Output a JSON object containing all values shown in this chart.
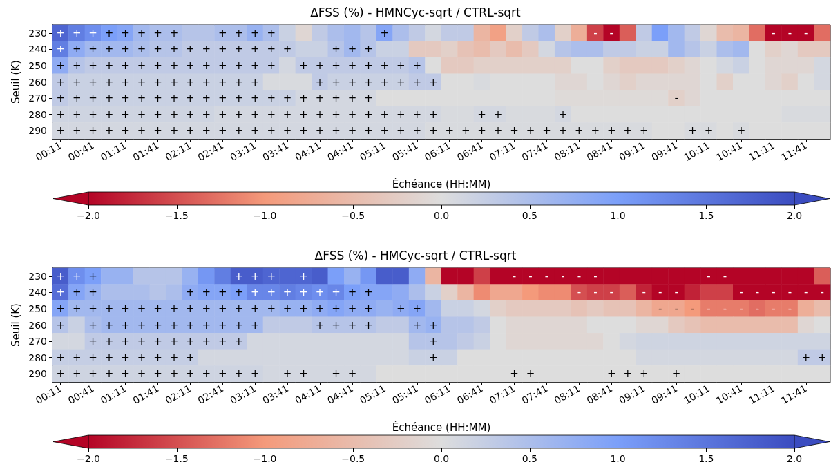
{
  "chart_data": [
    {
      "type": "heatmap",
      "title": "ΔFSS (%) - HMNCyc-sqrt / CTRL-sqrt",
      "xlabel": "Échéance (HH:MM)",
      "ylabel": "Seuil (K)",
      "categories": [
        "00:11",
        null,
        "00:41",
        null,
        "01:11",
        null,
        "01:41",
        null,
        "02:11",
        null,
        "02:41",
        null,
        "03:11",
        null,
        "03:41",
        null,
        "04:11",
        null,
        "04:41",
        null,
        "05:11",
        null,
        "05:41",
        null,
        "06:11",
        null,
        "06:41",
        null,
        "07:11",
        null,
        "07:41",
        null,
        "08:11",
        null,
        "08:41",
        null,
        "09:11",
        null,
        "09:41",
        null,
        "10:11",
        null,
        "10:41",
        null,
        "11:11",
        null,
        "11:41",
        null
      ],
      "y_categories": [
        "230",
        "240",
        "250",
        "260",
        "270",
        "280",
        "290"
      ],
      "cells": [
        [
          1.7,
          1.4,
          1.2,
          1.0,
          0.9,
          0.6,
          0.5,
          0.5,
          0.4,
          0.4,
          0.5,
          0.5,
          0.7,
          0.5,
          0.2,
          -0.1,
          0.3,
          0.5,
          0.6,
          0.4,
          0.9,
          0.5,
          0.3,
          0.1,
          0.3,
          0.3,
          -0.6,
          -0.9,
          -0.2,
          0.3,
          0.5,
          -0.2,
          -0.7,
          -1.6,
          -2.0,
          -1.4,
          0.3,
          1.0,
          0.6,
          0.3,
          -0.1,
          -0.5,
          -0.6,
          -1.3,
          -2.0,
          -2.0,
          -2.0,
          -1.3
        ],
        [
          1.4,
          0.8,
          0.6,
          0.6,
          0.6,
          0.5,
          0.4,
          0.4,
          0.3,
          0.3,
          0.3,
          0.3,
          0.3,
          0.3,
          0.3,
          0.2,
          0.2,
          0.4,
          0.6,
          0.4,
          0.2,
          0.2,
          -0.3,
          -0.3,
          -0.2,
          -0.4,
          -0.5,
          -0.3,
          -0.5,
          -0.3,
          0.1,
          0.4,
          0.5,
          0.5,
          0.3,
          0.3,
          0.2,
          0.2,
          0.6,
          0.4,
          0.2,
          0.5,
          0.6,
          0.0,
          -0.2,
          -0.1,
          -0.3,
          -0.3
        ],
        [
          0.8,
          0.4,
          0.3,
          0.3,
          0.3,
          0.3,
          0.3,
          0.3,
          0.3,
          0.3,
          0.3,
          0.3,
          0.3,
          0.3,
          0.1,
          0.3,
          0.3,
          0.3,
          0.3,
          0.3,
          0.3,
          0.3,
          0.4,
          0.0,
          -0.3,
          -0.3,
          -0.2,
          -0.2,
          -0.2,
          -0.2,
          -0.2,
          -0.2,
          0.0,
          0.0,
          -0.2,
          -0.3,
          -0.3,
          -0.3,
          -0.2,
          -0.1,
          0.0,
          0.1,
          0.2,
          0.0,
          -0.1,
          -0.1,
          -0.1,
          0.1
        ],
        [
          0.3,
          0.2,
          0.2,
          0.2,
          0.2,
          0.2,
          0.2,
          0.2,
          0.2,
          0.2,
          0.2,
          0.2,
          0.2,
          0.05,
          0.05,
          0.05,
          0.3,
          0.2,
          0.2,
          0.2,
          0.2,
          0.2,
          0.3,
          0.3,
          0.0,
          0.0,
          0.05,
          0.0,
          0.0,
          0.0,
          0.0,
          -0.1,
          -0.1,
          0.0,
          -0.1,
          -0.2,
          -0.1,
          -0.1,
          -0.1,
          -0.1,
          0.0,
          -0.2,
          0.0,
          0.0,
          -0.1,
          -0.2,
          0.0,
          0.1
        ],
        [
          0.3,
          0.2,
          0.2,
          0.2,
          0.2,
          0.2,
          0.2,
          0.2,
          0.2,
          0.2,
          0.2,
          0.2,
          0.2,
          0.2,
          0.2,
          0.1,
          0.1,
          0.1,
          0.1,
          0.1,
          0.0,
          0.0,
          0.0,
          0.0,
          0.0,
          0.0,
          0.0,
          0.0,
          0.0,
          0.0,
          0.0,
          -0.05,
          -0.05,
          -0.05,
          -0.05,
          -0.05,
          -0.05,
          -0.05,
          -0.2,
          -0.1,
          0.0,
          0.0,
          0.0,
          0.0,
          0.0,
          0.0,
          0.0,
          0.0
        ],
        [
          0.15,
          0.15,
          0.15,
          0.15,
          0.15,
          0.15,
          0.15,
          0.15,
          0.15,
          0.15,
          0.1,
          0.1,
          0.1,
          0.1,
          0.1,
          0.1,
          0.1,
          0.1,
          0.1,
          0.1,
          0.1,
          0.1,
          0.1,
          0.1,
          0.05,
          0.05,
          0.1,
          0.1,
          0.05,
          0.05,
          0.05,
          0.1,
          0.0,
          0.0,
          0.0,
          0.0,
          0.0,
          0.0,
          0.0,
          0.0,
          0.0,
          0.0,
          0.0,
          0.0,
          0.0,
          0.05,
          0.05,
          0.05
        ],
        [
          0.1,
          0.1,
          0.1,
          0.1,
          0.1,
          0.1,
          0.1,
          0.1,
          0.1,
          0.1,
          0.1,
          0.1,
          0.1,
          0.1,
          0.1,
          0.1,
          0.1,
          0.1,
          0.1,
          0.1,
          0.1,
          0.1,
          0.1,
          0.05,
          0.05,
          0.05,
          0.05,
          0.05,
          0.05,
          0.05,
          0.05,
          0.05,
          0.05,
          0.05,
          0.05,
          0.05,
          0.05,
          0.0,
          0.0,
          0.05,
          0.05,
          0.0,
          0.05,
          0.0,
          0.0,
          0.0,
          0.0,
          0.0
        ]
      ],
      "cell_labels": [
        [
          "+",
          "+",
          "+",
          "+",
          "+",
          "+",
          "+",
          "+",
          null,
          null,
          "+",
          "+",
          "+",
          "+",
          null,
          null,
          null,
          null,
          null,
          null,
          "+",
          null,
          null,
          null,
          null,
          null,
          null,
          null,
          null,
          null,
          null,
          null,
          null,
          "-",
          "-",
          null,
          null,
          null,
          null,
          null,
          null,
          null,
          null,
          null,
          "-",
          "-",
          "-",
          null
        ],
        [
          "+",
          "+",
          "+",
          "+",
          "+",
          "+",
          "+",
          "+",
          "+",
          "+",
          "+",
          "+",
          "+",
          "+",
          "+",
          null,
          null,
          "+",
          "+",
          "+",
          null,
          null,
          null,
          null,
          null,
          null,
          null,
          null,
          null,
          null,
          null,
          null,
          null,
          null,
          null,
          null,
          null,
          null,
          null,
          null,
          null,
          null,
          null,
          null,
          null,
          null,
          null,
          null
        ],
        [
          "+",
          "+",
          "+",
          "+",
          "+",
          "+",
          "+",
          "+",
          "+",
          "+",
          "+",
          "+",
          "+",
          "+",
          null,
          "+",
          "+",
          "+",
          "+",
          "+",
          "+",
          "+",
          "+",
          null,
          null,
          null,
          null,
          null,
          null,
          null,
          null,
          null,
          null,
          null,
          null,
          null,
          null,
          null,
          null,
          null,
          null,
          null,
          null,
          null,
          null,
          null,
          null,
          null
        ],
        [
          "+",
          "+",
          "+",
          "+",
          "+",
          "+",
          "+",
          "+",
          "+",
          "+",
          "+",
          "+",
          "+",
          null,
          null,
          null,
          "+",
          "+",
          "+",
          "+",
          "+",
          "+",
          "+",
          "+",
          null,
          null,
          null,
          null,
          null,
          null,
          null,
          null,
          null,
          null,
          null,
          null,
          null,
          null,
          null,
          null,
          null,
          null,
          null,
          null,
          null,
          null,
          null,
          null
        ],
        [
          "+",
          "+",
          "+",
          "+",
          "+",
          "+",
          "+",
          "+",
          "+",
          "+",
          "+",
          "+",
          "+",
          "+",
          "+",
          "+",
          "+",
          "+",
          "+",
          "+",
          null,
          null,
          null,
          null,
          null,
          null,
          null,
          null,
          null,
          null,
          null,
          null,
          null,
          null,
          null,
          null,
          null,
          null,
          "-",
          null,
          null,
          null,
          null,
          null,
          null,
          null,
          null,
          null
        ],
        [
          "+",
          "+",
          "+",
          "+",
          "+",
          "+",
          "+",
          "+",
          "+",
          "+",
          "+",
          "+",
          "+",
          "+",
          "+",
          "+",
          "+",
          "+",
          "+",
          "+",
          "+",
          "+",
          "+",
          "+",
          null,
          null,
          "+",
          "+",
          null,
          null,
          null,
          "+",
          null,
          null,
          null,
          null,
          null,
          null,
          null,
          null,
          null,
          null,
          null,
          null,
          null,
          null,
          null,
          null
        ],
        [
          "+",
          "+",
          "+",
          "+",
          "+",
          "+",
          "+",
          "+",
          "+",
          "+",
          "+",
          "+",
          "+",
          "+",
          "+",
          "+",
          "+",
          "+",
          "+",
          "+",
          "+",
          "+",
          "+",
          "+",
          "+",
          "+",
          "+",
          "+",
          "+",
          "+",
          "+",
          "+",
          "+",
          "+",
          "+",
          "+",
          "+",
          null,
          null,
          "+",
          "+",
          null,
          "+",
          null,
          null,
          null,
          null,
          null
        ]
      ],
      "clim": [
        -2,
        2
      ],
      "cticks": [
        {
          "value": -2,
          "label": "−2.0"
        },
        {
          "value": -1.5,
          "label": "−1.5"
        },
        {
          "value": -1,
          "label": "−1.0"
        },
        {
          "value": -0.5,
          "label": "−0.5"
        },
        {
          "value": 0,
          "label": "0.0"
        },
        {
          "value": 0.5,
          "label": "0.5"
        },
        {
          "value": 1,
          "label": "1.0"
        },
        {
          "value": 1.5,
          "label": "1.5"
        },
        {
          "value": 2,
          "label": "2.0"
        }
      ]
    },
    {
      "type": "heatmap",
      "title": "ΔFSS (%) - HMCyc-sqrt / CTRL-sqrt",
      "xlabel": "Échéance (HH:MM)",
      "ylabel": "Seuil (K)",
      "categories": [
        "00:11",
        null,
        "00:41",
        null,
        "01:11",
        null,
        "01:41",
        null,
        "02:11",
        null,
        "02:41",
        null,
        "03:11",
        null,
        "03:41",
        null,
        "04:11",
        null,
        "04:41",
        null,
        "05:11",
        null,
        "05:41",
        null,
        "06:11",
        null,
        "06:41",
        null,
        "07:11",
        null,
        "07:41",
        null,
        "08:11",
        null,
        "08:41",
        null,
        "09:11",
        null,
        "09:41",
        null,
        "10:11",
        null,
        "10:41",
        null,
        "11:11",
        null,
        "11:41",
        null
      ],
      "y_categories": [
        "230",
        "240",
        "250",
        "260",
        "270",
        "280",
        "290"
      ],
      "cells": [
        [
          1.8,
          1.2,
          1.0,
          0.7,
          0.7,
          0.4,
          0.4,
          0.4,
          0.7,
          1.1,
          1.4,
          1.8,
          1.8,
          1.7,
          1.7,
          1.7,
          1.8,
          1.0,
          0.7,
          1.1,
          1.8,
          1.8,
          0.8,
          -0.6,
          -2.0,
          -2.0,
          -1.6,
          -2.0,
          -2.0,
          -2.0,
          -2.0,
          -2.0,
          -2.0,
          -2.0,
          -2.0,
          -2.0,
          -2.0,
          -2.0,
          -2.0,
          -2.0,
          -2.0,
          -2.0,
          -2.0,
          -2.0,
          -2.0,
          -2.0,
          -2.0,
          -1.4
        ],
        [
          1.6,
          0.9,
          0.7,
          0.5,
          0.5,
          0.5,
          0.4,
          0.5,
          0.8,
          0.9,
          0.9,
          1.0,
          1.3,
          1.3,
          1.4,
          1.3,
          1.2,
          1.3,
          1.0,
          0.9,
          0.9,
          0.8,
          0.5,
          0.2,
          -0.2,
          -0.6,
          -1.1,
          -0.8,
          -0.8,
          -1.0,
          -1.1,
          -1.1,
          -1.5,
          -1.6,
          -1.6,
          -1.4,
          -1.8,
          -2.0,
          -2.0,
          -1.8,
          -1.6,
          -1.6,
          -2.0,
          -2.0,
          -2.0,
          -2.0,
          -2.0,
          -2.0
        ],
        [
          0.9,
          0.6,
          0.6,
          0.6,
          0.6,
          0.6,
          0.6,
          0.6,
          0.6,
          0.6,
          0.6,
          0.6,
          0.6,
          0.6,
          0.7,
          0.7,
          0.8,
          0.9,
          0.8,
          0.8,
          0.7,
          0.8,
          0.9,
          0.6,
          0.2,
          0.2,
          0.1,
          -0.2,
          -0.3,
          -0.3,
          -0.3,
          -0.3,
          -0.4,
          -0.3,
          -0.4,
          -0.4,
          -0.6,
          -0.8,
          -0.8,
          -1.0,
          -1.2,
          -1.2,
          -1.2,
          -1.3,
          -1.2,
          -1.2,
          -0.7,
          -0.5
        ],
        [
          0.4,
          0.2,
          0.5,
          0.6,
          0.6,
          0.6,
          0.6,
          0.6,
          0.6,
          0.6,
          0.6,
          0.6,
          0.6,
          0.3,
          0.3,
          0.3,
          0.4,
          0.4,
          0.4,
          0.4,
          0.3,
          0.3,
          0.6,
          0.7,
          0.4,
          0.4,
          0.3,
          0.0,
          -0.1,
          -0.1,
          -0.1,
          -0.1,
          -0.1,
          0.0,
          0.0,
          0.0,
          -0.1,
          -0.1,
          -0.3,
          -0.4,
          -0.5,
          -0.5,
          -0.5,
          -0.5,
          -0.5,
          -0.5,
          -0.1,
          0.0
        ],
        [
          0.1,
          0.1,
          0.3,
          0.3,
          0.3,
          0.3,
          0.3,
          0.3,
          0.3,
          0.3,
          0.3,
          0.3,
          0.1,
          0.1,
          0.1,
          0.1,
          0.1,
          0.1,
          0.1,
          0.1,
          0.1,
          0.1,
          0.4,
          0.4,
          0.4,
          0.3,
          0.2,
          0.0,
          -0.1,
          -0.1,
          -0.1,
          -0.1,
          -0.1,
          -0.1,
          0.0,
          0.1,
          0.15,
          0.15,
          0.15,
          0.15,
          0.15,
          0.15,
          0.15,
          0.15,
          0.15,
          0.15,
          0.15,
          0.15
        ],
        [
          0.25,
          0.25,
          0.25,
          0.25,
          0.25,
          0.25,
          0.25,
          0.25,
          0.25,
          0.1,
          0.1,
          0.1,
          0.1,
          0.1,
          0.1,
          0.1,
          0.1,
          0.1,
          0.1,
          0.1,
          0.1,
          0.1,
          0.2,
          0.2,
          0.2,
          0.0,
          0.0,
          0.0,
          0.0,
          0.0,
          0.0,
          0.0,
          0.0,
          0.0,
          0.0,
          0.0,
          0.1,
          0.1,
          0.1,
          0.1,
          0.1,
          0.1,
          0.1,
          0.1,
          0.1,
          0.1,
          0.3,
          0.3
        ],
        [
          0.15,
          0.15,
          0.15,
          0.15,
          0.15,
          0.15,
          0.15,
          0.15,
          0.15,
          0.15,
          0.15,
          0.15,
          0.15,
          0.1,
          0.1,
          0.1,
          0.1,
          0.1,
          0.1,
          0.1,
          0.0,
          0.0,
          0.0,
          0.0,
          0.0,
          0.0,
          0.0,
          0.0,
          0.0,
          0.0,
          0.0,
          0.0,
          0.0,
          0.0,
          0.0,
          0.0,
          0.0,
          0.0,
          0.0,
          0.0,
          0.0,
          0.0,
          0.0,
          0.0,
          0.0,
          0.0,
          0.0,
          0.0
        ]
      ],
      "cell_labels": [
        [
          "+",
          "+",
          "+",
          null,
          null,
          null,
          null,
          null,
          null,
          null,
          null,
          "+",
          "+",
          "+",
          null,
          "+",
          null,
          null,
          null,
          null,
          null,
          null,
          null,
          null,
          null,
          null,
          null,
          null,
          "-",
          "-",
          "-",
          "-",
          "-",
          "-",
          null,
          null,
          null,
          null,
          null,
          null,
          "-",
          "-",
          null,
          null,
          null,
          null,
          null,
          null
        ],
        [
          "+",
          "+",
          "+",
          null,
          null,
          null,
          null,
          null,
          "+",
          "+",
          "+",
          "+",
          "+",
          "+",
          "+",
          "+",
          "+",
          "+",
          "+",
          "+",
          null,
          null,
          null,
          null,
          null,
          null,
          null,
          null,
          null,
          null,
          null,
          null,
          "-",
          "-",
          "-",
          null,
          "-",
          "-",
          "-",
          null,
          null,
          null,
          "-",
          "-",
          "-",
          "-",
          "-",
          "-"
        ],
        [
          "+",
          "+",
          "+",
          "+",
          "+",
          "+",
          "+",
          "+",
          "+",
          "+",
          "+",
          "+",
          "+",
          "+",
          "+",
          "+",
          "+",
          "+",
          "+",
          "+",
          null,
          "+",
          "+",
          null,
          null,
          null,
          null,
          null,
          null,
          null,
          null,
          null,
          null,
          null,
          null,
          null,
          null,
          "-",
          "-",
          "-",
          "-",
          "-",
          "-",
          "-",
          "-",
          "-",
          null,
          null
        ],
        [
          "+",
          null,
          "+",
          "+",
          "+",
          "+",
          "+",
          "+",
          "+",
          "+",
          "+",
          "+",
          "+",
          null,
          null,
          null,
          "+",
          "+",
          "+",
          "+",
          null,
          null,
          "+",
          "+",
          null,
          null,
          null,
          null,
          null,
          null,
          null,
          null,
          null,
          null,
          null,
          null,
          null,
          null,
          null,
          null,
          null,
          null,
          null,
          null,
          null,
          null,
          null,
          null
        ],
        [
          null,
          null,
          "+",
          "+",
          "+",
          "+",
          "+",
          "+",
          "+",
          "+",
          "+",
          "+",
          null,
          null,
          null,
          null,
          null,
          null,
          null,
          null,
          null,
          null,
          null,
          "+",
          null,
          null,
          null,
          null,
          null,
          null,
          null,
          null,
          null,
          null,
          null,
          null,
          null,
          null,
          null,
          null,
          null,
          null,
          null,
          null,
          null,
          null,
          null,
          null
        ],
        [
          "+",
          "+",
          "+",
          "+",
          "+",
          "+",
          "+",
          "+",
          "+",
          null,
          null,
          null,
          null,
          null,
          null,
          null,
          null,
          null,
          null,
          null,
          null,
          null,
          null,
          "+",
          null,
          null,
          null,
          null,
          null,
          null,
          null,
          null,
          null,
          null,
          null,
          null,
          null,
          null,
          null,
          null,
          null,
          null,
          null,
          null,
          null,
          null,
          "+",
          "+"
        ],
        [
          "+",
          "+",
          "+",
          "+",
          "+",
          "+",
          "+",
          "+",
          "+",
          "+",
          "+",
          "+",
          "+",
          null,
          "+",
          "+",
          null,
          "+",
          "+",
          null,
          null,
          null,
          null,
          null,
          null,
          null,
          null,
          null,
          "+",
          "+",
          null,
          null,
          null,
          null,
          "+",
          "+",
          "+",
          null,
          "+",
          null,
          null,
          null,
          null,
          null,
          null,
          null,
          null,
          null
        ]
      ],
      "clim": [
        -2,
        2
      ],
      "cticks": [
        {
          "value": -2,
          "label": "−2.0"
        },
        {
          "value": -1.5,
          "label": "−1.5"
        },
        {
          "value": -1,
          "label": "−1.0"
        },
        {
          "value": -0.5,
          "label": "−0.5"
        },
        {
          "value": 0,
          "label": "0.0"
        },
        {
          "value": 0.5,
          "label": "0.5"
        },
        {
          "value": 1,
          "label": "1.0"
        },
        {
          "value": 1.5,
          "label": "1.5"
        },
        {
          "value": 2,
          "label": "2.0"
        }
      ]
    }
  ]
}
